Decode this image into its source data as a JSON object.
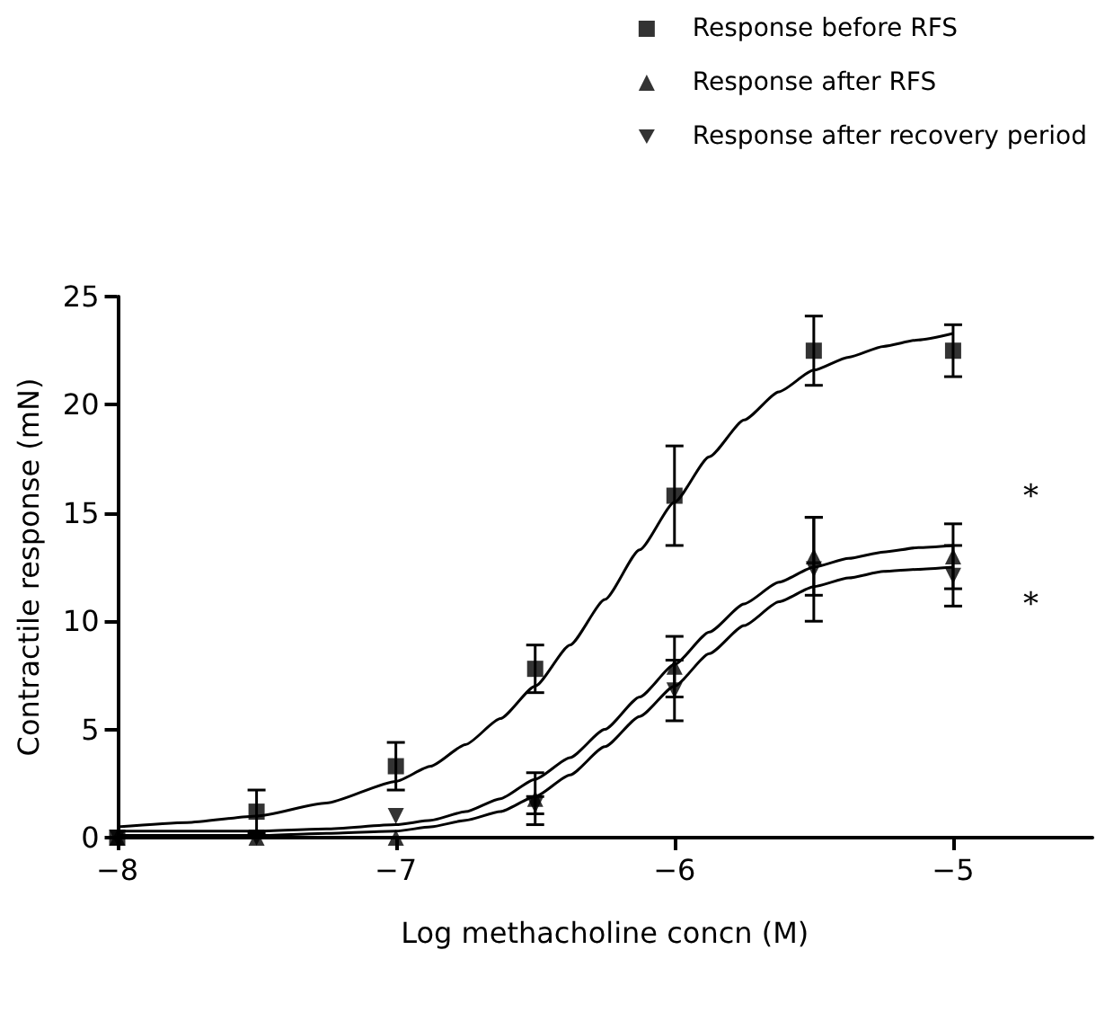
{
  "chart_data": {
    "type": "scatter",
    "xlabel": "Log methacholine concn (M)",
    "ylabel": "Contractile response (mN)",
    "xlim": [
      -8,
      -4.5
    ],
    "xticks": [
      {
        "value": -8,
        "label": "−8"
      },
      {
        "value": -7,
        "label": "−7"
      },
      {
        "value": -6,
        "label": "−6"
      },
      {
        "value": -5,
        "label": "−5"
      }
    ],
    "ylim": [
      0,
      25
    ],
    "yticks": [
      0,
      5,
      10,
      15,
      20,
      25
    ],
    "grid": false,
    "legend": "top right",
    "series": [
      {
        "name": "Response before RFS",
        "marker": "square",
        "color": "#000000",
        "x": [
          -8,
          -7.5,
          -7,
          -6.5,
          -6,
          -5.5,
          -5
        ],
        "values": [
          0,
          1.2,
          3.3,
          7.8,
          15.8,
          22.5,
          22.5
        ],
        "errors": [
          null,
          1.0,
          1.1,
          1.1,
          2.3,
          1.6,
          1.2
        ]
      },
      {
        "name": "Response after RFS",
        "marker": "triangle",
        "color": "#000000",
        "x": [
          -8,
          -7.5,
          -7,
          -6.5,
          -6,
          -5.5,
          -5
        ],
        "values": [
          0,
          0,
          0,
          1.8,
          7.9,
          13.0,
          13.0
        ],
        "errors": [
          null,
          null,
          null,
          1.2,
          1.4,
          1.8,
          1.5
        ]
      },
      {
        "name": "Response after recovery period",
        "marker": "triangle-down",
        "color": "#000000",
        "x": [
          -8,
          -7.5,
          -7,
          -6.5,
          -6,
          -5.5,
          -5
        ],
        "values": [
          0,
          0,
          1.0,
          1.5,
          6.8,
          12.4,
          12.1
        ],
        "errors": [
          null,
          null,
          null,
          0.4,
          1.4,
          2.4,
          1.4
        ]
      },
      {
        "type": "line",
        "marker": "none",
        "color": "#000000",
        "x": [
          -8,
          -7.75,
          -7.5,
          -7.25,
          -7,
          -6.875,
          -6.75,
          -6.625,
          -6.5,
          -6.375,
          -6.25,
          -6.125,
          -6,
          -5.875,
          -5.75,
          -5.625,
          -5.5,
          -5.375,
          -5.25,
          -5.125,
          -5
        ],
        "values": [
          0.5,
          0.7,
          1.0,
          1.6,
          2.6,
          3.3,
          4.3,
          5.5,
          7.0,
          8.9,
          11.0,
          13.3,
          15.5,
          17.6,
          19.3,
          20.6,
          21.6,
          22.2,
          22.7,
          23.0,
          23.3
        ]
      },
      {
        "type": "line",
        "marker": "none",
        "color": "#000000",
        "x": [
          -8,
          -7.5,
          -7.25,
          -7,
          -6.875,
          -6.75,
          -6.625,
          -6.5,
          -6.375,
          -6.25,
          -6.125,
          -6,
          -5.875,
          -5.75,
          -5.625,
          -5.5,
          -5.375,
          -5.25,
          -5.125,
          -5
        ],
        "values": [
          0.3,
          0.3,
          0.4,
          0.6,
          0.8,
          1.2,
          1.8,
          2.7,
          3.7,
          5.0,
          6.5,
          8.0,
          9.5,
          10.8,
          11.8,
          12.5,
          12.9,
          13.2,
          13.4,
          13.5
        ]
      },
      {
        "type": "line",
        "marker": "none",
        "color": "#000000",
        "x": [
          -8,
          -7.5,
          -7.25,
          -7,
          -6.875,
          -6.75,
          -6.625,
          -6.5,
          -6.375,
          -6.25,
          -6.125,
          -6,
          -5.875,
          -5.75,
          -5.625,
          -5.5,
          -5.375,
          -5.25,
          -5.125,
          -5
        ],
        "values": [
          0.1,
          0.1,
          0.2,
          0.3,
          0.5,
          0.8,
          1.2,
          1.9,
          2.9,
          4.2,
          5.6,
          7.0,
          8.5,
          9.8,
          10.9,
          11.6,
          12.0,
          12.3,
          12.4,
          12.5
        ]
      }
    ],
    "annotations": [
      "*",
      "*"
    ]
  }
}
